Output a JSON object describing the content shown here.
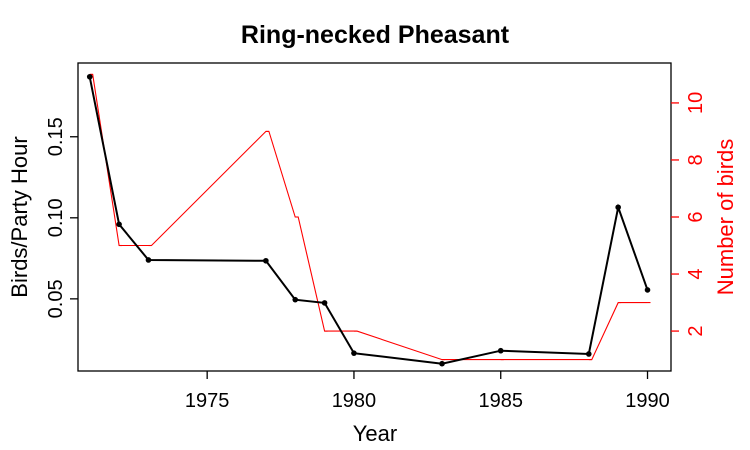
{
  "chart_data": {
    "type": "line",
    "title": "Ring-necked Pheasant",
    "xlabel": "Year",
    "ylabel_left": "Birds/Party Hour",
    "ylabel_right": "Number of birds",
    "xlim": [
      1970.6,
      1990.8
    ],
    "ylim_left": [
      0.0055,
      0.1955
    ],
    "ylim_right": [
      0.6,
      11.4
    ],
    "x_ticks": [
      "1975",
      "1980",
      "1985",
      "1990"
    ],
    "y_left_ticks": [
      "0.05",
      "0.10",
      "0.15"
    ],
    "y_right_ticks": [
      "2",
      "4",
      "6",
      "8",
      "10"
    ],
    "grid": false,
    "legend": "none",
    "series": [
      {
        "axis": "left",
        "style": "line+points",
        "color": "#000000",
        "x": [
          1971,
          1972,
          1973,
          1977,
          1978,
          1979,
          1980,
          1983,
          1985,
          1988,
          1989,
          1990
        ],
        "y": [
          0.187,
          0.096,
          0.074,
          0.0735,
          0.0495,
          0.0475,
          0.0165,
          0.01,
          0.018,
          0.016,
          0.1065,
          0.0555
        ]
      },
      {
        "axis": "right",
        "style": "step-line",
        "color": "#ff0000",
        "x": [
          1971,
          1972,
          1973,
          1977,
          1978,
          1979,
          1980,
          1983,
          1985,
          1988,
          1989,
          1990
        ],
        "y": [
          11,
          5,
          5,
          9,
          6,
          2,
          2,
          1,
          1,
          1,
          3,
          3
        ]
      }
    ]
  }
}
